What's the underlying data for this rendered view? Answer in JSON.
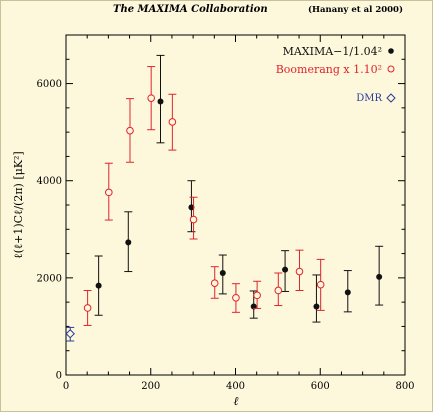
{
  "header": {
    "title": "The MAXIMA Collaboration",
    "citation": "(Hanany et al 2000)"
  },
  "colors": {
    "background": "#fdf7dc",
    "maxima": "#111111",
    "boomerang": "#e0242c",
    "dmr": "#2a3d9a"
  },
  "chart_data": {
    "type": "scatter",
    "xlabel": "ℓ",
    "ylabel": "ℓ(ℓ+1)Cℓ/(2π) [μK²]",
    "xlim": [
      0,
      800
    ],
    "ylim": [
      0,
      7000
    ],
    "x_ticks": [
      "0",
      "200",
      "400",
      "600",
      "800"
    ],
    "y_ticks": [
      "0",
      "2000",
      "4000",
      "6000"
    ],
    "legend_position": "top-right",
    "grid": false,
    "series": [
      {
        "name": "MAXIMA−1/1.04²",
        "marker": "filled-circle",
        "color": "#111111",
        "points": [
          {
            "x": 77,
            "y": 1840,
            "lo": 1230,
            "hi": 2450
          },
          {
            "x": 147,
            "y": 2730,
            "lo": 2130,
            "hi": 3360
          },
          {
            "x": 223,
            "y": 5630,
            "lo": 4780,
            "hi": 6580
          },
          {
            "x": 296,
            "y": 3450,
            "lo": 2950,
            "hi": 4000
          },
          {
            "x": 370,
            "y": 2100,
            "lo": 1670,
            "hi": 2470
          },
          {
            "x": 443,
            "y": 1410,
            "lo": 1170,
            "hi": 1730
          },
          {
            "x": 517,
            "y": 2170,
            "lo": 1720,
            "hi": 2560
          },
          {
            "x": 591,
            "y": 1410,
            "lo": 1090,
            "hi": 2060
          },
          {
            "x": 665,
            "y": 1700,
            "lo": 1300,
            "hi": 2150
          },
          {
            "x": 739,
            "y": 2020,
            "lo": 1440,
            "hi": 2650
          }
        ]
      },
      {
        "name": "Boomerang x 1.10²",
        "marker": "open-circle",
        "color": "#e0242c",
        "points": [
          {
            "x": 51,
            "y": 1380,
            "lo": 1020,
            "hi": 1740
          },
          {
            "x": 101,
            "y": 3760,
            "lo": 3190,
            "hi": 4360
          },
          {
            "x": 151,
            "y": 5030,
            "lo": 4380,
            "hi": 5690
          },
          {
            "x": 201,
            "y": 5700,
            "lo": 5050,
            "hi": 6350
          },
          {
            "x": 251,
            "y": 5210,
            "lo": 4630,
            "hi": 5780
          },
          {
            "x": 301,
            "y": 3200,
            "lo": 2800,
            "hi": 3660
          },
          {
            "x": 351,
            "y": 1890,
            "lo": 1580,
            "hi": 2230
          },
          {
            "x": 401,
            "y": 1590,
            "lo": 1290,
            "hi": 1880
          },
          {
            "x": 451,
            "y": 1640,
            "lo": 1370,
            "hi": 1930
          },
          {
            "x": 501,
            "y": 1740,
            "lo": 1430,
            "hi": 2100
          },
          {
            "x": 551,
            "y": 2130,
            "lo": 1740,
            "hi": 2570
          },
          {
            "x": 601,
            "y": 1860,
            "lo": 1330,
            "hi": 2380
          }
        ]
      },
      {
        "name": "DMR",
        "marker": "open-diamond",
        "color": "#2a3d9a",
        "points": [
          {
            "x": 10,
            "y": 850,
            "lo": 700,
            "hi": 980
          }
        ]
      }
    ]
  }
}
